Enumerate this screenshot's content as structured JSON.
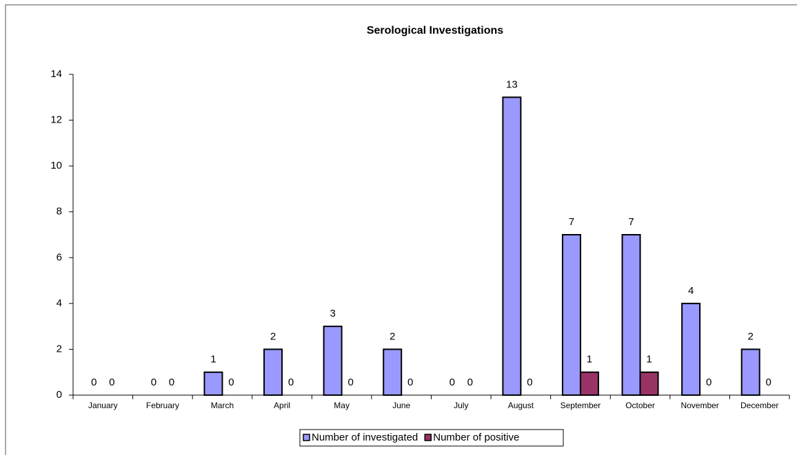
{
  "chart_data": {
    "type": "bar",
    "title": "Serological Investigations",
    "categories": [
      "January",
      "February",
      "March",
      "April",
      "May",
      "June",
      "July",
      "August",
      "September",
      "October",
      "November",
      "December"
    ],
    "series": [
      {
        "name": "Number of investigated",
        "color": "#9999ff",
        "values": [
          0,
          0,
          1,
          2,
          3,
          2,
          0,
          13,
          7,
          7,
          4,
          2
        ]
      },
      {
        "name": "Number of positive",
        "color": "#993366",
        "values": [
          0,
          0,
          0,
          0,
          0,
          0,
          0,
          0,
          1,
          1,
          0,
          0
        ]
      }
    ],
    "ylim": [
      0,
      14
    ],
    "yticks": [
      0,
      2,
      4,
      6,
      8,
      10,
      12,
      14
    ],
    "grid": false,
    "legend": "bottom"
  }
}
